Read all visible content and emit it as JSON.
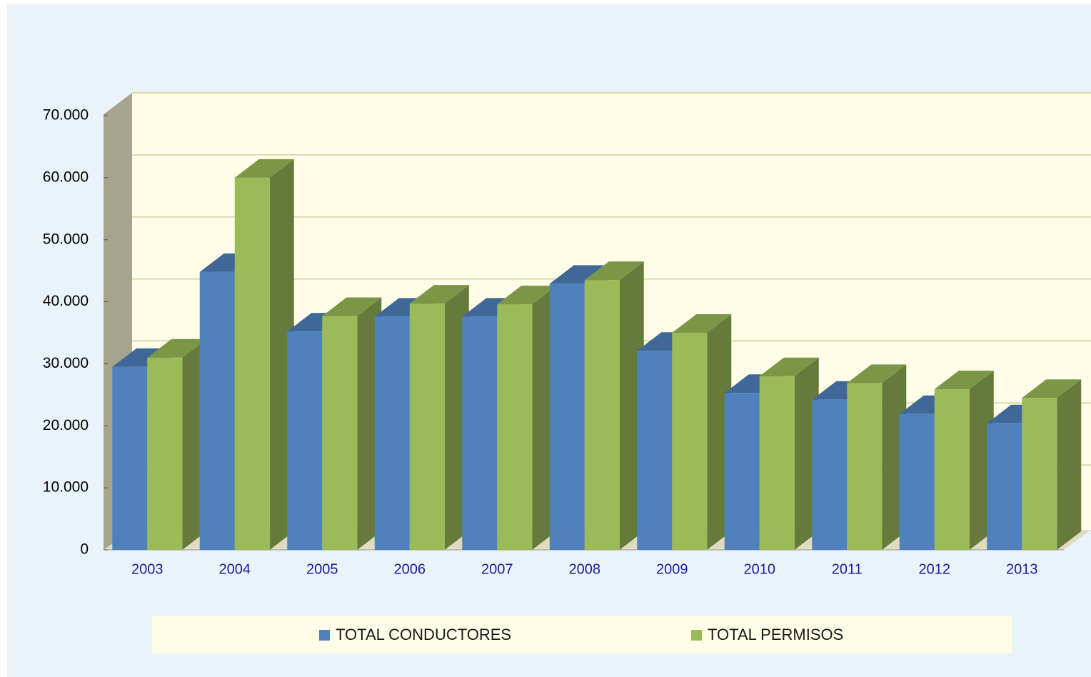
{
  "chart_data": {
    "type": "bar3d",
    "categories": [
      "2003",
      "2004",
      "2005",
      "2006",
      "2007",
      "2008",
      "2009",
      "2010",
      "2011",
      "2012",
      "2013"
    ],
    "series": [
      {
        "name": "TOTAL CONDUCTORES",
        "color": "#4f81bd",
        "values": [
          29500,
          44800,
          35200,
          37600,
          37600,
          42900,
          32100,
          25300,
          24200,
          21900,
          20400
        ]
      },
      {
        "name": "TOTAL PERMISOS",
        "color": "#9bbb59",
        "values": [
          31000,
          60000,
          37700,
          39700,
          39600,
          43500,
          35000,
          28000,
          26900,
          25900,
          24500
        ]
      }
    ],
    "ylim": [
      0,
      70000
    ],
    "yticks": [
      0,
      {
        "value": 10000,
        "label": "10.000"
      },
      {
        "value": 20000,
        "label": "20.000"
      },
      {
        "value": 30000,
        "label": "30.000"
      },
      {
        "value": 40000,
        "label": "40.000"
      },
      {
        "value": 50000,
        "label": "50.000"
      },
      {
        "value": 60000,
        "label": "60.000"
      },
      {
        "value": 70000,
        "label": "70.000"
      }
    ],
    "grid": true,
    "legend": "bottom"
  }
}
